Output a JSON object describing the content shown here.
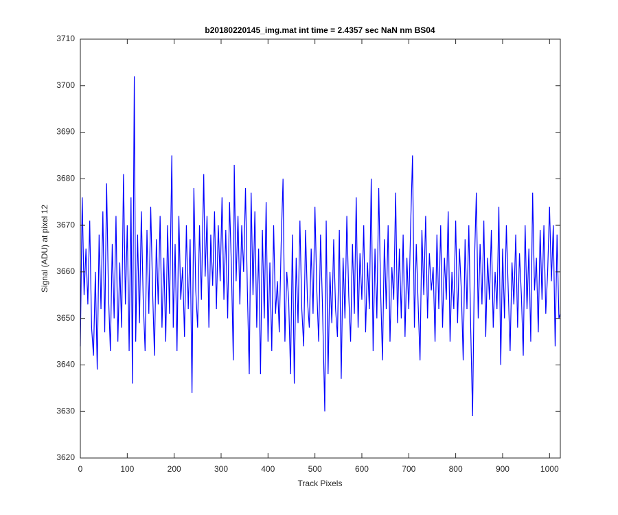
{
  "chart_data": {
    "type": "line",
    "title": "b20180220145_img.mat int time = 2.4357 sec  NaN nm BS04",
    "x_label": "Track Pixels",
    "y_label": "Signal (ADU) at pixel 12",
    "xlim": [
      0,
      1023
    ],
    "ylim": [
      3620,
      3710
    ],
    "xticks": [
      0,
      100,
      200,
      300,
      400,
      500,
      600,
      700,
      800,
      900,
      1000
    ],
    "yticks": [
      3620,
      3630,
      3640,
      3650,
      3660,
      3670,
      3680,
      3690,
      3700,
      3710
    ],
    "grid": false,
    "x": [
      0,
      4,
      8,
      12,
      16,
      20,
      24,
      28,
      32,
      36,
      40,
      44,
      48,
      52,
      56,
      60,
      64,
      68,
      72,
      76,
      80,
      84,
      88,
      92,
      96,
      100,
      104,
      108,
      111,
      115,
      118,
      122,
      126,
      130,
      134,
      138,
      142,
      146,
      150,
      154,
      158,
      162,
      166,
      170,
      174,
      178,
      182,
      186,
      190,
      195,
      198,
      202,
      206,
      210,
      214,
      218,
      222,
      226,
      230,
      234,
      238,
      242,
      246,
      250,
      254,
      258,
      263,
      266,
      270,
      274,
      278,
      282,
      286,
      290,
      294,
      298,
      302,
      306,
      310,
      314,
      318,
      322,
      326,
      328,
      332,
      336,
      340,
      344,
      348,
      352,
      356,
      360,
      364,
      368,
      372,
      376,
      380,
      384,
      388,
      392,
      396,
      400,
      404,
      408,
      412,
      416,
      420,
      424,
      428,
      432,
      436,
      440,
      444,
      448,
      452,
      456,
      460,
      464,
      468,
      472,
      476,
      480,
      484,
      488,
      492,
      496,
      500,
      504,
      508,
      512,
      516,
      521,
      524,
      528,
      532,
      536,
      540,
      544,
      548,
      552,
      556,
      560,
      564,
      568,
      572,
      576,
      580,
      584,
      588,
      592,
      596,
      600,
      604,
      608,
      612,
      616,
      620,
      624,
      628,
      632,
      636,
      640,
      644,
      648,
      652,
      656,
      660,
      664,
      668,
      672,
      676,
      680,
      684,
      688,
      692,
      696,
      700,
      704,
      708,
      712,
      716,
      720,
      724,
      728,
      732,
      736,
      740,
      744,
      748,
      752,
      756,
      760,
      764,
      768,
      772,
      776,
      780,
      784,
      788,
      792,
      796,
      800,
      804,
      808,
      812,
      816,
      820,
      824,
      828,
      832,
      836,
      840,
      844,
      848,
      852,
      856,
      860,
      864,
      868,
      872,
      876,
      880,
      884,
      888,
      892,
      896,
      900,
      904,
      908,
      912,
      916,
      920,
      924,
      928,
      932,
      936,
      940,
      944,
      948,
      952,
      956,
      960,
      964,
      968,
      972,
      976,
      980,
      984,
      988,
      992,
      996,
      1000,
      1004,
      1008,
      1012,
      1016,
      1020,
      1023
    ],
    "series": [
      {
        "name": "signal",
        "color": "#0000ff",
        "values": [
          3644,
          3676,
          3655,
          3665,
          3653,
          3671,
          3648,
          3642,
          3660,
          3639,
          3668,
          3652,
          3673,
          3647,
          3679,
          3655,
          3643,
          3666,
          3650,
          3672,
          3645,
          3662,
          3648,
          3681,
          3653,
          3670,
          3643,
          3676,
          3636,
          3702,
          3645,
          3668,
          3649,
          3673,
          3654,
          3643,
          3669,
          3651,
          3674,
          3656,
          3642,
          3667,
          3653,
          3672,
          3648,
          3663,
          3645,
          3670,
          3651,
          3685,
          3648,
          3666,
          3643,
          3672,
          3654,
          3661,
          3646,
          3670,
          3652,
          3667,
          3634,
          3678,
          3656,
          3648,
          3670,
          3654,
          3681,
          3659,
          3672,
          3648,
          3668,
          3657,
          3673,
          3652,
          3670,
          3658,
          3676,
          3654,
          3669,
          3650,
          3675,
          3661,
          3641,
          3683,
          3658,
          3672,
          3653,
          3670,
          3660,
          3678,
          3656,
          3638,
          3677,
          3655,
          3673,
          3648,
          3665,
          3638,
          3669,
          3650,
          3675,
          3645,
          3662,
          3643,
          3670,
          3651,
          3658,
          3647,
          3666,
          3680,
          3645,
          3660,
          3654,
          3638,
          3668,
          3636,
          3663,
          3649,
          3671,
          3652,
          3644,
          3669,
          3654,
          3648,
          3665,
          3651,
          3674,
          3656,
          3645,
          3668,
          3653,
          3630,
          3671,
          3638,
          3660,
          3649,
          3667,
          3652,
          3646,
          3669,
          3637,
          3663,
          3650,
          3672,
          3655,
          3645,
          3666,
          3651,
          3676,
          3648,
          3664,
          3654,
          3670,
          3647,
          3662,
          3652,
          3680,
          3643,
          3665,
          3650,
          3678,
          3656,
          3641,
          3667,
          3652,
          3670,
          3645,
          3661,
          3654,
          3677,
          3649,
          3665,
          3650,
          3668,
          3646,
          3663,
          3652,
          3670,
          3685,
          3648,
          3666,
          3653,
          3641,
          3669,
          3655,
          3672,
          3650,
          3664,
          3656,
          3661,
          3645,
          3668,
          3652,
          3670,
          3648,
          3663,
          3654,
          3673,
          3645,
          3660,
          3652,
          3671,
          3649,
          3665,
          3656,
          3641,
          3667,
          3652,
          3670,
          3648,
          3629,
          3662,
          3677,
          3650,
          3666,
          3653,
          3671,
          3646,
          3663,
          3654,
          3669,
          3648,
          3660,
          3652,
          3674,
          3640,
          3665,
          3650,
          3670,
          3656,
          3643,
          3662,
          3653,
          3668,
          3648,
          3664,
          3655,
          3642,
          3670,
          3652,
          3665,
          3645,
          3677,
          3656,
          3663,
          3647,
          3669,
          3654,
          3670,
          3651,
          3660,
          3674,
          3658,
          3670,
          3644,
          3668,
          3650,
          3651
        ]
      }
    ]
  }
}
